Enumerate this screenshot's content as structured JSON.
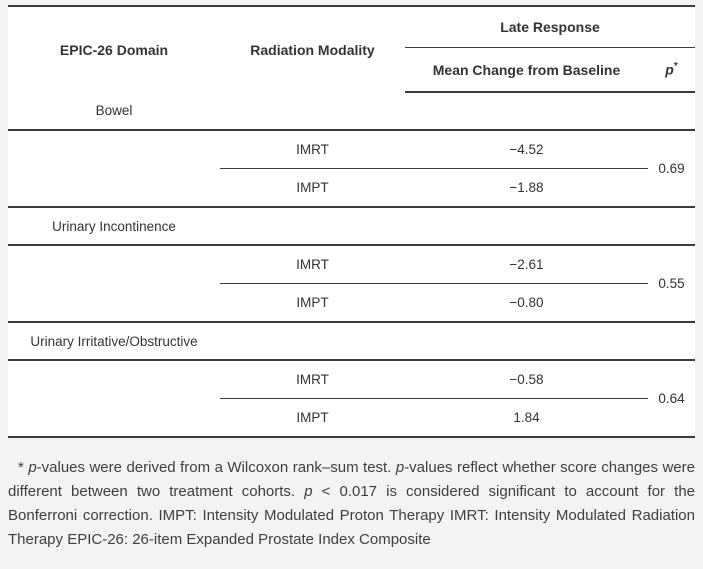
{
  "table": {
    "header": {
      "domain": "EPIC-26 Domain",
      "modality": "Radiation Modality",
      "group": "Late Response",
      "sub_mean": "Mean Change from Baseline",
      "sub_p": "p",
      "sub_p_asterisk": "*"
    },
    "sections": [
      {
        "domain": "Bowel",
        "rows": [
          {
            "modality": "IMRT",
            "mean_change": "−4.52"
          },
          {
            "modality": "IMPT",
            "mean_change": "−1.88"
          }
        ],
        "p_value": "0.69"
      },
      {
        "domain": "Urinary Incontinence",
        "rows": [
          {
            "modality": "IMRT",
            "mean_change": "−2.61"
          },
          {
            "modality": "IMPT",
            "mean_change": "−0.80"
          }
        ],
        "p_value": "0.55"
      },
      {
        "domain": "Urinary Irritative/Obstructive",
        "rows": [
          {
            "modality": "IMRT",
            "mean_change": "−0.58"
          },
          {
            "modality": "IMPT",
            "mean_change": "1.84"
          }
        ],
        "p_value": "0.64"
      }
    ]
  },
  "footnote": {
    "segments": [
      {
        "text": "* "
      },
      {
        "text": "p",
        "italic": true
      },
      {
        "text": "-values were derived from a Wilcoxon rank–sum test. "
      },
      {
        "text": "p",
        "italic": true
      },
      {
        "text": "-values reflect whether score changes were different between two treatment cohorts. "
      },
      {
        "text": "p",
        "italic": true
      },
      {
        "text": " < 0.017 is considered significant to account for the Bonferroni correction. IMPT: Intensity Modulated Proton Therapy IMRT: Intensity Modulated Radiation Therapy EPIC-26: 26-item Expanded Prostate Index Composite"
      }
    ]
  },
  "colors": {
    "page_background": "#f4f3f3",
    "table_background": "#ffffff",
    "rule_color": "#3c3c3c",
    "text_color": "#333333"
  }
}
